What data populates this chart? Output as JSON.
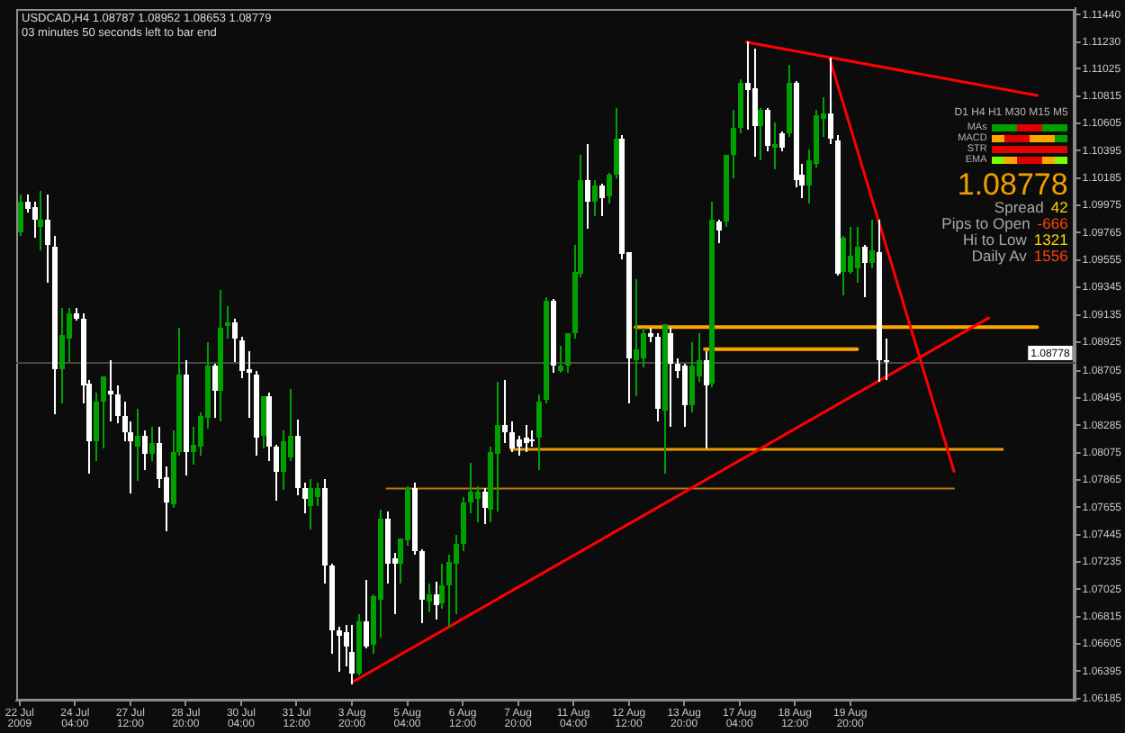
{
  "chart_data": {
    "type": "candlestick",
    "title": "USDCAD,H4 1.08787 1.08952 1.08653 1.08779",
    "subtitle": "03 minutes 50 seconds left to bar end",
    "annotations": [
      "D1 H4 H1 M30 M15 M5",
      "MAs",
      "MACD",
      "STR",
      "EMA",
      "1.08778",
      "Spread",
      "42",
      "Pips to Open",
      "-666",
      "Hi to Low",
      "1321",
      "Daily Av",
      "1556"
    ],
    "categories": [
      "22 Jul 2009",
      null,
      null,
      null,
      null,
      null,
      null,
      null,
      "24 Jul 04:00",
      null,
      null,
      null,
      null,
      null,
      null,
      null,
      "27 Jul 12:00",
      null,
      null,
      null,
      null,
      null,
      null,
      null,
      "28 Jul 20:00",
      null,
      null,
      null,
      null,
      null,
      null,
      null,
      "30 Jul 04:00",
      null,
      null,
      null,
      null,
      null,
      null,
      null,
      "31 Jul 12:00",
      null,
      null,
      null,
      null,
      null,
      null,
      null,
      "3 Aug 20:00",
      null,
      null,
      null,
      null,
      null,
      null,
      null,
      "5 Aug 04:00",
      null,
      null,
      null,
      null,
      null,
      null,
      null,
      "6 Aug 12:00",
      null,
      null,
      null,
      null,
      null,
      null,
      null,
      "7 Aug 20:00",
      null,
      null,
      null,
      null,
      null,
      null,
      null,
      "11 Aug 04:00",
      null,
      null,
      null,
      null,
      null,
      null,
      null,
      "12 Aug 12:00",
      null,
      null,
      null,
      null,
      null,
      null,
      null,
      "13 Aug 20:00",
      null,
      null,
      null,
      null,
      null,
      null,
      null,
      "17 Aug 04:00",
      null,
      null,
      null,
      null,
      null,
      null,
      null,
      "18 Aug 12:00",
      null,
      null,
      null,
      null,
      null,
      null,
      null,
      "19 Aug 20:00",
      null,
      null,
      null,
      null,
      null,
      null,
      null,
      null,
      null,
      null,
      null,
      null,
      null,
      null,
      null,
      null,
      null,
      null,
      null,
      null,
      null,
      null,
      null,
      null,
      null,
      null,
      null,
      null,
      null,
      null,
      null,
      null
    ],
    "ohlc": [
      [
        1.0978,
        1.1006,
        1.0975,
        1.1001
      ],
      [
        1.1001,
        1.1006,
        1.0993,
        1.0996
      ],
      [
        1.0996,
        1.1001,
        1.0974,
        1.0986
      ],
      [
        1.0981,
        1.1009,
        1.0965,
        1.0987
      ],
      [
        1.0986,
        1.1006,
        1.0939,
        1.0966
      ],
      [
        1.0966,
        1.0974,
        1.0839,
        1.0872
      ],
      [
        1.0872,
        1.0919,
        1.0847,
        1.0898
      ],
      [
        1.0896,
        1.0919,
        1.0879,
        1.0915
      ],
      [
        1.0915,
        1.0919,
        1.091,
        1.0911
      ],
      [
        1.0911,
        1.0914,
        1.0847,
        1.086
      ],
      [
        1.086,
        1.0863,
        1.0793,
        1.0816
      ],
      [
        1.0816,
        1.0854,
        1.0803,
        1.0847
      ],
      [
        1.0847,
        1.0866,
        1.0812,
        1.0866
      ],
      [
        1.0855,
        1.0878,
        1.0833,
        1.0852
      ],
      [
        1.0852,
        1.0859,
        1.0832,
        1.0835
      ],
      [
        1.0835,
        1.0847,
        1.0817,
        1.0823
      ],
      [
        1.0823,
        1.0831,
        1.0777,
        1.0816
      ],
      [
        1.0813,
        1.0841,
        1.0787,
        1.0821
      ],
      [
        1.0821,
        1.0824,
        1.0795,
        1.0807
      ],
      [
        1.0807,
        1.0827,
        1.0803,
        1.0815
      ],
      [
        1.0815,
        1.0827,
        1.0782,
        1.0788
      ],
      [
        1.0788,
        1.0797,
        1.0748,
        1.0769
      ],
      [
        1.0768,
        1.0825,
        1.0766,
        1.0808
      ],
      [
        1.0808,
        1.0904,
        1.0807,
        1.0867
      ],
      [
        1.0867,
        1.0879,
        1.0792,
        1.0807
      ],
      [
        1.0808,
        1.0827,
        1.0799,
        1.0813
      ],
      [
        1.0812,
        1.0839,
        1.0807,
        1.0835
      ],
      [
        1.0835,
        1.0892,
        1.0827,
        1.0875
      ],
      [
        1.0875,
        1.0876,
        1.0835,
        1.0856
      ],
      [
        1.0856,
        1.0933,
        1.0833,
        1.0904
      ],
      [
        1.0904,
        1.092,
        1.0896,
        1.0907
      ],
      [
        1.0907,
        1.0911,
        1.0879,
        1.0894
      ],
      [
        1.0894,
        1.0896,
        1.0866,
        1.0871
      ],
      [
        1.0871,
        1.0886,
        1.0835,
        1.0868
      ],
      [
        1.0868,
        1.087,
        1.0807,
        1.082
      ],
      [
        1.0821,
        1.0851,
        1.0812,
        1.0851
      ],
      [
        1.0851,
        1.0854,
        1.0803,
        1.0812
      ],
      [
        1.0812,
        1.0813,
        1.0772,
        1.0793
      ],
      [
        1.0793,
        1.0825,
        1.078,
        1.0816
      ],
      [
        1.0805,
        1.0856,
        1.0803,
        1.0821
      ],
      [
        1.0821,
        1.0833,
        1.0776,
        1.0781
      ],
      [
        1.0781,
        1.0785,
        1.0762,
        1.0773
      ],
      [
        1.0766,
        1.0787,
        1.075,
        1.078
      ],
      [
        1.0773,
        1.0785,
        1.0768,
        1.078
      ],
      [
        1.078,
        1.0787,
        1.0709,
        1.0721
      ],
      [
        1.0721,
        1.0722,
        1.0655,
        1.0671
      ],
      [
        1.0671,
        1.0674,
        1.0641,
        1.0667
      ],
      [
        1.0669,
        1.0675,
        1.0644,
        1.0658
      ],
      [
        1.0654,
        1.0675,
        1.0631,
        1.0638
      ],
      [
        1.0638,
        1.0683,
        1.0638,
        1.0678
      ],
      [
        1.0678,
        1.071,
        1.0659,
        1.0659
      ],
      [
        1.0659,
        1.0698,
        1.0654,
        1.0697
      ],
      [
        1.0695,
        1.0764,
        1.0667,
        1.0757
      ],
      [
        1.0757,
        1.0762,
        1.0709,
        1.0722
      ],
      [
        1.0726,
        1.073,
        1.0685,
        1.0722
      ],
      [
        1.0722,
        1.0742,
        1.0709,
        1.0741
      ],
      [
        1.074,
        1.0782,
        1.0738,
        1.078
      ],
      [
        1.078,
        1.0784,
        1.073,
        1.0732
      ],
      [
        1.0732,
        1.0733,
        1.0678,
        1.0694
      ],
      [
        1.0693,
        1.0707,
        1.0686,
        1.0699
      ],
      [
        1.0699,
        1.0709,
        1.0681,
        1.0691
      ],
      [
        1.0691,
        1.0722,
        1.0689,
        1.0705
      ],
      [
        1.0705,
        1.0729,
        1.0675,
        1.0723
      ],
      [
        1.0722,
        1.0745,
        1.0685,
        1.0737
      ],
      [
        1.0737,
        1.0773,
        1.0733,
        1.0769
      ],
      [
        1.0769,
        1.0799,
        1.0762,
        1.0777
      ],
      [
        1.0772,
        1.0782,
        1.0756,
        1.0777
      ],
      [
        1.0777,
        1.0781,
        1.0754,
        1.0765
      ],
      [
        1.0764,
        1.0812,
        1.0756,
        1.0808
      ],
      [
        1.0807,
        1.0862,
        1.0764,
        1.0829
      ],
      [
        1.0829,
        1.0863,
        1.0816,
        1.0823
      ],
      [
        1.0823,
        1.0832,
        1.0809,
        1.0811
      ],
      [
        1.0817,
        1.0821,
        1.0807,
        1.0811
      ],
      [
        1.0819,
        1.0829,
        1.0809,
        1.0815
      ],
      [
        1.0818,
        1.0825,
        1.0813,
        1.0816
      ],
      [
        1.0819,
        1.0852,
        1.0795,
        1.0847
      ],
      [
        1.0848,
        1.0927,
        1.0847,
        1.0924
      ],
      [
        1.0924,
        1.0926,
        1.087,
        1.0874
      ],
      [
        1.0871,
        1.089,
        1.087,
        1.0875
      ],
      [
        1.0874,
        1.09,
        1.087,
        1.0899
      ],
      [
        1.0899,
        1.0967,
        1.0896,
        1.0946
      ],
      [
        1.0945,
        1.1036,
        1.0943,
        1.1017
      ],
      [
        1.1017,
        1.1045,
        1.0981,
        1.1001
      ],
      [
        1.1001,
        1.1017,
        1.099,
        1.1013
      ],
      [
        1.1013,
        1.1014,
        1.099,
        1.1004
      ],
      [
        1.1004,
        1.1022,
        1.1001,
        1.1021
      ],
      [
        1.1021,
        1.1073,
        1.102,
        1.1049
      ],
      [
        1.1049,
        1.1051,
        1.0957,
        1.0961
      ],
      [
        1.0961,
        1.0961,
        1.0847,
        1.0879
      ],
      [
        1.0879,
        1.0941,
        1.0852,
        1.0887
      ],
      [
        1.0879,
        1.0903,
        1.0874,
        1.0899
      ],
      [
        1.0899,
        1.0903,
        1.0894,
        1.0896
      ],
      [
        1.0896,
        1.0899,
        1.0833,
        1.084
      ],
      [
        1.084,
        1.0906,
        1.0793,
        1.0906
      ],
      [
        1.09,
        1.0903,
        1.0829,
        1.0876
      ],
      [
        1.0876,
        1.088,
        1.0866,
        1.087
      ],
      [
        1.0874,
        1.0876,
        1.0829,
        1.0843
      ],
      [
        1.0843,
        1.0892,
        1.084,
        1.0874
      ],
      [
        1.0867,
        1.0899,
        1.0863,
        1.0879
      ],
      [
        1.0879,
        1.0886,
        1.0812,
        1.086
      ],
      [
        1.086,
        1.1001,
        1.0859,
        1.0986
      ],
      [
        1.0985,
        1.0986,
        1.097,
        1.0978
      ],
      [
        1.0985,
        1.1037,
        1.0983,
        1.1036
      ],
      [
        1.1036,
        1.1071,
        1.102,
        1.1057
      ],
      [
        1.1057,
        1.1095,
        1.1054,
        1.1092
      ],
      [
        1.1092,
        1.1123,
        1.1057,
        1.1087
      ],
      [
        1.1087,
        1.1118,
        1.1037,
        1.1058
      ],
      [
        1.1058,
        1.1072,
        1.1034,
        1.1071
      ],
      [
        1.1071,
        1.1072,
        1.104,
        1.1044
      ],
      [
        1.1042,
        1.1061,
        1.1026,
        1.1045
      ],
      [
        1.1053,
        1.1054,
        1.1041,
        1.1042
      ],
      [
        1.1053,
        1.1105,
        1.1051,
        1.1092
      ],
      [
        1.1092,
        1.1093,
        1.1013,
        1.1017
      ],
      [
        1.1021,
        1.103,
        1.1004,
        1.1013
      ],
      [
        1.1013,
        1.1041,
        1.1001,
        1.1032
      ],
      [
        1.103,
        1.1071,
        1.1028,
        1.1067
      ],
      [
        1.1064,
        1.108,
        1.1051,
        1.1068
      ],
      [
        1.1068,
        1.1111,
        1.1046,
        1.1048
      ],
      [
        1.1048,
        1.1051,
        1.0945,
        1.0946
      ],
      [
        1.0947,
        1.0974,
        1.093,
        1.0973
      ],
      [
        1.0947,
        1.0981,
        1.0946,
        1.0959
      ],
      [
        1.0949,
        1.0981,
        1.0939,
        1.0966
      ],
      [
        1.0966,
        1.0967,
        1.0929,
        1.0954
      ],
      [
        1.0954,
        1.0986,
        1.095,
        1.0963
      ],
      [
        1.0962,
        1.0986,
        1.0863,
        1.0879
      ],
      [
        1.08787,
        1.08952,
        1.08653,
        1.08779
      ],
      null,
      null,
      null,
      null,
      null,
      null,
      null,
      null,
      null,
      null,
      null,
      null,
      null,
      null,
      null,
      null,
      null,
      null,
      null,
      null,
      null,
      null,
      null,
      null,
      null,
      null,
      null
    ],
    "colors": [
      "#00a000",
      "#ffffff",
      "#ffffff",
      "#00a000",
      "#ffffff",
      "#ffffff",
      "#00a000",
      "#00a000",
      "#ffffff",
      "#ffffff",
      "#ffffff",
      "#00a000",
      "#00a000",
      "#ffffff",
      "#ffffff",
      "#ffffff",
      "#ffffff",
      "#00a000",
      "#ffffff",
      "#00a000",
      "#ffffff",
      "#ffffff",
      "#00a000",
      "#00a000",
      "#ffffff",
      "#00a000",
      "#00a000",
      "#00a000",
      "#ffffff",
      "#00a000",
      "#00a000",
      "#ffffff",
      "#ffffff",
      "#ffffff",
      "#ffffff",
      "#00a000",
      "#ffffff",
      "#ffffff",
      "#00a000",
      "#00a000",
      "#ffffff",
      "#ffffff",
      "#00a000",
      "#00a000",
      "#ffffff",
      "#ffffff",
      "#ffffff",
      "#ffffff",
      "#ffffff",
      "#00a000",
      "#ffffff",
      "#00a000",
      "#00a000",
      "#ffffff",
      "#ffffff",
      "#00a000",
      "#00a000",
      "#ffffff",
      "#ffffff",
      "#00a000",
      "#ffffff",
      "#00a000",
      "#00a000",
      "#00a000",
      "#00a000",
      "#00a000",
      "#00a000",
      "#ffffff",
      "#00a000",
      "#00a000",
      "#ffffff",
      "#ffffff",
      "#ffffff",
      "#ffffff",
      "#ffffff",
      "#00a000",
      "#00a000",
      "#ffffff",
      "#00a000",
      "#00a000",
      "#00a000",
      "#00a000",
      "#ffffff",
      "#00a000",
      "#ffffff",
      "#00a000",
      "#00a000",
      "#ffffff",
      "#ffffff",
      "#00a000",
      "#00a000",
      "#ffffff",
      "#ffffff",
      "#00a000",
      "#ffffff",
      "#ffffff",
      "#ffffff",
      "#00a000",
      "#00a000",
      "#ffffff",
      "#00a000",
      "#ffffff",
      "#00a000",
      "#00a000",
      "#00a000",
      "#ffffff",
      "#ffffff",
      "#00a000",
      "#ffffff",
      "#00a000",
      "#ffffff",
      "#00a000",
      "#ffffff",
      "#ffffff",
      "#00a000",
      "#00a000",
      "#00a000",
      "#ffffff",
      "#ffffff",
      "#00a000",
      "#00a000",
      "#00a000",
      "#ffffff",
      "#00a000",
      "#ffffff",
      "#ffffff",
      null,
      null,
      null,
      null,
      null,
      null,
      null,
      null,
      null,
      null,
      null,
      null,
      null,
      null,
      null,
      null,
      null,
      null,
      null,
      null,
      null,
      null,
      null,
      null,
      null,
      null,
      null
    ],
    "series": [
      {
        "type": "line",
        "color": "#ff0000",
        "values": [
          null,
          null,
          null,
          null,
          null,
          null,
          null,
          null,
          null,
          null,
          null,
          null,
          null,
          null,
          null,
          null,
          null,
          null,
          null,
          null,
          null,
          null,
          null,
          null,
          null,
          null,
          null,
          null,
          null,
          null,
          null,
          null,
          null,
          null,
          null,
          null,
          null,
          null,
          null,
          null,
          null,
          null,
          null,
          null,
          null,
          null,
          null,
          null,
          1.0631,
          null,
          null,
          null,
          null,
          null,
          null,
          null,
          null,
          null,
          null,
          null,
          null,
          null,
          null,
          null,
          null,
          null,
          null,
          null,
          null,
          null,
          null,
          null,
          null,
          null,
          null,
          null,
          null,
          null,
          null,
          null,
          null,
          null,
          null,
          null,
          null,
          null,
          null,
          null,
          null,
          null,
          null,
          null,
          null,
          null,
          null,
          null,
          null,
          null,
          null,
          null,
          null,
          null,
          null,
          null,
          null,
          null,
          null,
          null,
          null,
          null,
          null,
          null,
          null,
          null,
          null,
          null,
          null,
          null,
          null,
          null,
          null,
          null,
          null,
          null,
          null,
          null,
          null,
          null,
          null,
          null,
          null,
          null,
          null,
          null,
          null,
          null,
          null,
          null,
          null,
          null,
          1.0911,
          null,
          null,
          null,
          null,
          null,
          null,
          null,
          null,
          null,
          null,
          null,
          null
        ]
      },
      {
        "type": "line",
        "color": "#ff0000",
        "values": [
          null,
          null,
          null,
          null,
          null,
          null,
          null,
          null,
          null,
          null,
          null,
          null,
          null,
          null,
          null,
          null,
          null,
          null,
          null,
          null,
          null,
          null,
          null,
          null,
          null,
          null,
          null,
          null,
          null,
          null,
          null,
          null,
          null,
          null,
          null,
          null,
          null,
          null,
          null,
          null,
          null,
          null,
          null,
          null,
          null,
          null,
          null,
          null,
          null,
          null,
          null,
          null,
          null,
          null,
          null,
          null,
          null,
          null,
          null,
          null,
          null,
          null,
          null,
          null,
          null,
          null,
          null,
          null,
          null,
          null,
          null,
          null,
          null,
          null,
          null,
          null,
          null,
          null,
          null,
          null,
          null,
          null,
          null,
          null,
          null,
          null,
          null,
          null,
          null,
          null,
          null,
          null,
          null,
          null,
          null,
          null,
          null,
          null,
          null,
          null,
          null,
          null,
          null,
          null,
          null,
          1.1123,
          null,
          null,
          null,
          null,
          null,
          null,
          null,
          null,
          null,
          null,
          null,
          null,
          null,
          null,
          null,
          null,
          null,
          null,
          null,
          null,
          null,
          null,
          null,
          null,
          null,
          null,
          null,
          null,
          null,
          null,
          null,
          null,
          null,
          null,
          null,
          null,
          null,
          null,
          null,
          null,
          null,
          1.1082,
          null,
          null,
          null,
          null,
          null
        ]
      },
      {
        "type": "line",
        "color": "#ff0000",
        "values": [
          null,
          null,
          null,
          null,
          null,
          null,
          null,
          null,
          null,
          null,
          null,
          null,
          null,
          null,
          null,
          null,
          null,
          null,
          null,
          null,
          null,
          null,
          null,
          null,
          null,
          null,
          null,
          null,
          null,
          null,
          null,
          null,
          null,
          null,
          null,
          null,
          null,
          null,
          null,
          null,
          null,
          null,
          null,
          null,
          null,
          null,
          null,
          null,
          null,
          null,
          null,
          null,
          null,
          null,
          null,
          null,
          null,
          null,
          null,
          null,
          null,
          null,
          null,
          null,
          null,
          null,
          null,
          null,
          null,
          null,
          null,
          null,
          null,
          null,
          null,
          null,
          null,
          null,
          null,
          null,
          null,
          null,
          null,
          null,
          null,
          null,
          null,
          null,
          null,
          null,
          null,
          null,
          null,
          null,
          null,
          null,
          null,
          null,
          null,
          null,
          null,
          null,
          null,
          null,
          null,
          null,
          null,
          null,
          null,
          null,
          null,
          null,
          null,
          null,
          null,
          null,
          null,
          1.1111,
          null,
          null,
          null,
          null,
          null,
          null,
          null,
          null,
          null,
          null,
          null,
          null,
          null,
          null,
          null,
          null,
          null,
          1.0793,
          null,
          null,
          null,
          null,
          null,
          null,
          null,
          null,
          null,
          null,
          null,
          null,
          null,
          null,
          null,
          null,
          null
        ]
      },
      {
        "type": "line",
        "color": "#ffa500",
        "values": [
          null,
          null,
          null,
          null,
          null,
          null,
          null,
          null,
          null,
          null,
          null,
          null,
          null,
          null,
          null,
          null,
          null,
          null,
          null,
          null,
          null,
          null,
          null,
          null,
          null,
          null,
          null,
          null,
          null,
          null,
          null,
          null,
          null,
          null,
          null,
          null,
          null,
          null,
          null,
          null,
          null,
          null,
          null,
          null,
          null,
          null,
          null,
          null,
          null,
          null,
          null,
          null,
          null,
          null,
          null,
          null,
          null,
          null,
          null,
          null,
          null,
          null,
          null,
          null,
          null,
          null,
          null,
          null,
          null,
          null,
          null,
          null,
          null,
          null,
          null,
          null,
          null,
          null,
          null,
          null,
          null,
          null,
          null,
          null,
          null,
          null,
          null,
          null,
          null,
          1.0904,
          null,
          null,
          null,
          null,
          null,
          null,
          null,
          null,
          null,
          null,
          null,
          null,
          null,
          null,
          null,
          null,
          null,
          null,
          null,
          null,
          null,
          null,
          null,
          null,
          null,
          null,
          null,
          null,
          null,
          null,
          null,
          null,
          null,
          null,
          null,
          null,
          null,
          null,
          null,
          null,
          null,
          null,
          null,
          null,
          null,
          null,
          null,
          null,
          null,
          null,
          null,
          null,
          null,
          null,
          null,
          null,
          null,
          1.0904,
          null,
          null,
          null,
          null,
          null
        ]
      },
      {
        "type": "line",
        "color": "#ffa500",
        "values": [
          null,
          null,
          null,
          null,
          null,
          null,
          null,
          null,
          null,
          null,
          null,
          null,
          null,
          null,
          null,
          null,
          null,
          null,
          null,
          null,
          null,
          null,
          null,
          null,
          null,
          null,
          null,
          null,
          null,
          null,
          null,
          null,
          null,
          null,
          null,
          null,
          null,
          null,
          null,
          null,
          null,
          null,
          null,
          null,
          null,
          null,
          null,
          null,
          null,
          null,
          null,
          null,
          null,
          null,
          null,
          null,
          null,
          null,
          null,
          null,
          null,
          null,
          null,
          null,
          null,
          null,
          null,
          null,
          null,
          null,
          null,
          null,
          null,
          null,
          null,
          null,
          null,
          null,
          null,
          null,
          null,
          null,
          null,
          null,
          null,
          null,
          null,
          null,
          null,
          null,
          null,
          null,
          null,
          null,
          null,
          null,
          null,
          null,
          null,
          1.0887,
          null,
          null,
          null,
          null,
          null,
          null,
          null,
          null,
          null,
          null,
          null,
          null,
          null,
          null,
          null,
          null,
          null,
          null,
          null,
          null,
          null,
          1.0887,
          null,
          null,
          null,
          null,
          null,
          null,
          null,
          null,
          null,
          null,
          null,
          null,
          null,
          null,
          null,
          null,
          null,
          null,
          null,
          null,
          null,
          null,
          null,
          null,
          null,
          null,
          null,
          null,
          null,
          null,
          null
        ]
      },
      {
        "type": "line",
        "color": "#f09a00",
        "values": [
          null,
          null,
          null,
          null,
          null,
          null,
          null,
          null,
          null,
          null,
          null,
          null,
          null,
          null,
          null,
          null,
          null,
          null,
          null,
          null,
          null,
          null,
          null,
          null,
          null,
          null,
          null,
          null,
          null,
          null,
          null,
          null,
          null,
          null,
          null,
          null,
          null,
          null,
          null,
          null,
          null,
          null,
          null,
          null,
          null,
          null,
          null,
          null,
          null,
          null,
          null,
          null,
          null,
          null,
          null,
          null,
          null,
          null,
          null,
          null,
          null,
          null,
          null,
          null,
          null,
          null,
          null,
          null,
          null,
          null,
          null,
          1.081,
          null,
          null,
          null,
          null,
          null,
          null,
          null,
          null,
          null,
          null,
          null,
          null,
          null,
          null,
          null,
          null,
          null,
          null,
          null,
          null,
          null,
          null,
          null,
          null,
          null,
          null,
          null,
          null,
          null,
          null,
          null,
          null,
          null,
          null,
          null,
          null,
          null,
          null,
          null,
          null,
          null,
          null,
          null,
          null,
          null,
          null,
          null,
          null,
          null,
          null,
          null,
          null,
          null,
          null,
          null,
          null,
          null,
          null,
          null,
          null,
          null,
          null,
          null,
          null,
          null,
          null,
          null,
          null,
          null,
          null,
          1.081,
          null,
          null,
          null,
          null,
          null,
          null,
          null,
          null,
          null,
          null
        ]
      },
      {
        "type": "line",
        "color": "#b8780a",
        "values": [
          null,
          null,
          null,
          null,
          null,
          null,
          null,
          null,
          null,
          null,
          null,
          null,
          null,
          null,
          null,
          null,
          null,
          null,
          null,
          null,
          null,
          null,
          null,
          null,
          null,
          null,
          null,
          null,
          null,
          null,
          null,
          null,
          null,
          null,
          null,
          null,
          null,
          null,
          null,
          null,
          null,
          null,
          null,
          null,
          null,
          null,
          null,
          null,
          null,
          null,
          null,
          null,
          null,
          1.078,
          null,
          null,
          null,
          null,
          null,
          null,
          null,
          null,
          null,
          null,
          null,
          null,
          null,
          null,
          null,
          null,
          null,
          null,
          null,
          null,
          null,
          null,
          null,
          null,
          null,
          null,
          null,
          null,
          null,
          null,
          null,
          null,
          null,
          null,
          null,
          null,
          null,
          null,
          null,
          null,
          null,
          null,
          null,
          null,
          null,
          null,
          null,
          null,
          null,
          null,
          null,
          null,
          null,
          null,
          null,
          null,
          null,
          null,
          null,
          null,
          null,
          null,
          null,
          null,
          null,
          null,
          null,
          null,
          null,
          null,
          null,
          null,
          null,
          null,
          null,
          null,
          null,
          null,
          null,
          null,
          null,
          1.078,
          null,
          null,
          null,
          null,
          null,
          null,
          null,
          null,
          null,
          null,
          null,
          null,
          null,
          null,
          null,
          null,
          null
        ]
      }
    ],
    "ylim": [
      1.0617,
      1.1149
    ],
    "yticks": [
      {
        "value": 1.1144,
        "label": "1.11440"
      },
      {
        "value": 1.1123,
        "label": "1.11230"
      },
      {
        "value": 1.11025,
        "label": "1.11025"
      },
      {
        "value": 1.10815,
        "label": "1.10815"
      },
      {
        "value": 1.10605,
        "label": "1.10605"
      },
      {
        "value": 1.10395,
        "label": "1.10395"
      },
      {
        "value": 1.10185,
        "label": "1.10185"
      },
      {
        "value": 1.09975,
        "label": "1.09975"
      },
      {
        "value": 1.09765,
        "label": "1.09765"
      },
      {
        "value": 1.09555,
        "label": "1.09555"
      },
      {
        "value": 1.09345,
        "label": "1.09345"
      },
      {
        "value": 1.09135,
        "label": "1.09135"
      },
      {
        "value": 1.08925,
        "label": "1.08925"
      },
      {
        "value": 1.08705,
        "label": "1.08705"
      },
      {
        "value": 1.08495,
        "label": "1.08495"
      },
      {
        "value": 1.08285,
        "label": "1.08285"
      },
      {
        "value": 1.08075,
        "label": "1.08075"
      },
      {
        "value": 1.07865,
        "label": "1.07865"
      },
      {
        "value": 1.07655,
        "label": "1.07655"
      },
      {
        "value": 1.07445,
        "label": "1.07445"
      },
      {
        "value": 1.07235,
        "label": "1.07235"
      },
      {
        "value": 1.07025,
        "label": "1.07025"
      },
      {
        "value": 1.06815,
        "label": "1.06815"
      },
      {
        "value": 1.06605,
        "label": "1.06605"
      },
      {
        "value": 1.06395,
        "label": "1.06395"
      },
      {
        "value": 1.06185,
        "label": "1.06185"
      }
    ],
    "ref_lines": [
      {
        "axis": "y",
        "value": 1.08778,
        "label": "1.08778",
        "color": "#464646"
      }
    ]
  }
}
